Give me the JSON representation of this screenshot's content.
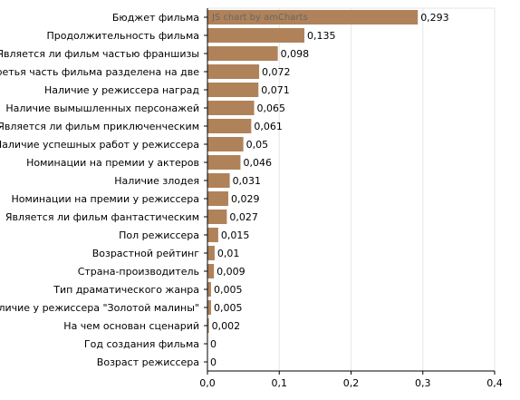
{
  "chart_data": {
    "type": "bar",
    "orientation": "horizontal",
    "title": "",
    "xlabel": "",
    "ylabel": "",
    "categories": [
      "Бюджет фильма",
      "Продолжительность фильма",
      "Является ли фильм частью франшизы",
      "Третья часть фильма разделена на две",
      "Наличие у режиссера наград",
      "Наличие вымышленных персонажей",
      "Является ли фильм приключенческим",
      "Наличие успешных работ у режиссера",
      "Номинации на премии у актеров",
      "Наличие злодея",
      "Номинации на премии у режиссера",
      "Является ли фильм фантастическим",
      "Пол режиссера",
      "Возрастной рейтинг",
      "Страна-производитель",
      "Тип драматического жанра",
      "Наличие у режиссера \"Золотой малины\"",
      "На чем основан сценарий",
      "Год создания фильма",
      "Возраст режиссера"
    ],
    "values": [
      0.293,
      0.135,
      0.098,
      0.072,
      0.071,
      0.065,
      0.061,
      0.05,
      0.046,
      0.031,
      0.029,
      0.027,
      0.015,
      0.01,
      0.009,
      0.005,
      0.005,
      0.002,
      0,
      0
    ],
    "value_labels": [
      "0,293",
      "0,135",
      "0,098",
      "0,072",
      "0,071",
      "0,065",
      "0,061",
      "0,05",
      "0,046",
      "0,031",
      "0,029",
      "0,027",
      "0,015",
      "0,01",
      "0,009",
      "0,005",
      "0,005",
      "0,002",
      "0",
      "0"
    ],
    "xlim": [
      0,
      0.4
    ],
    "x_ticks": [
      0,
      0.1,
      0.2,
      0.3,
      0.4
    ],
    "x_tick_labels": [
      "0,0",
      "0,1",
      "0,2",
      "0,3",
      "0,4"
    ],
    "grid": true,
    "legend": "none",
    "credit": "JS chart by amCharts",
    "colors": {
      "bar": "#b0825a",
      "grid": "#e6e6e6",
      "axis": "#000000",
      "text": "#000000",
      "credit": "#666666"
    }
  }
}
